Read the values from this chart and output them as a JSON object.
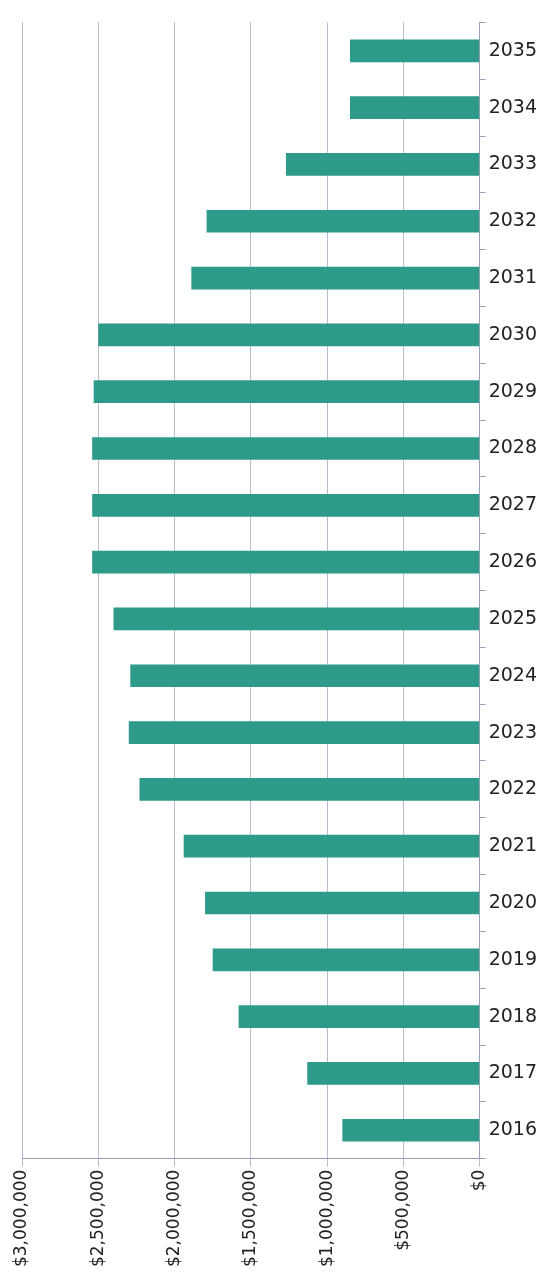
{
  "chart_data": {
    "type": "bar",
    "orientation": "horizontal",
    "categories": [
      "2035",
      "2034",
      "2033",
      "2032",
      "2031",
      "2030",
      "2029",
      "2028",
      "2027",
      "2026",
      "2025",
      "2024",
      "2023",
      "2022",
      "2021",
      "2020",
      "2019",
      "2018",
      "2017",
      "2016"
    ],
    "values": [
      850000,
      850000,
      1270000,
      1790000,
      1890000,
      2500000,
      2530000,
      2540000,
      2540000,
      2540000,
      2400000,
      2290000,
      2300000,
      2230000,
      1940000,
      1800000,
      1750000,
      1580000,
      1130000,
      900000
    ],
    "color": "#2e9a8a",
    "xlim": [
      3000000,
      0
    ],
    "xticks": [
      {
        "value": 3000000,
        "label": "$3,000,000"
      },
      {
        "value": 2500000,
        "label": "$2,500,000"
      },
      {
        "value": 2000000,
        "label": "$2,000,000"
      },
      {
        "value": 1500000,
        "label": "$1,500,000"
      },
      {
        "value": 1000000,
        "label": "$1,000,000"
      },
      {
        "value": 500000,
        "label": "$500,000"
      },
      {
        "value": 0,
        "label": "$0"
      }
    ],
    "grid": "x",
    "legend": false
  }
}
